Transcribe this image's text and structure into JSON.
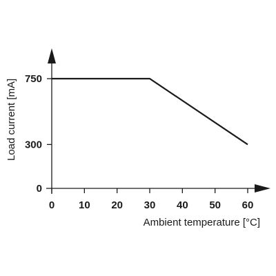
{
  "chart_data": {
    "type": "line",
    "xlabel": "Ambient temperature [°C]",
    "ylabel": "Load current [mA]",
    "x_ticks": [
      0,
      10,
      20,
      30,
      40,
      50,
      60
    ],
    "y_ticks": [
      0,
      300,
      750
    ],
    "xlim": [
      0,
      60
    ],
    "ylim": [
      0,
      750
    ],
    "grid": false,
    "series": [
      {
        "x": [
          0,
          30,
          60
        ],
        "y": [
          750,
          750,
          300
        ]
      }
    ],
    "colors": {
      "line": "#1a1a1a",
      "axis": "#1a1a1a"
    }
  }
}
